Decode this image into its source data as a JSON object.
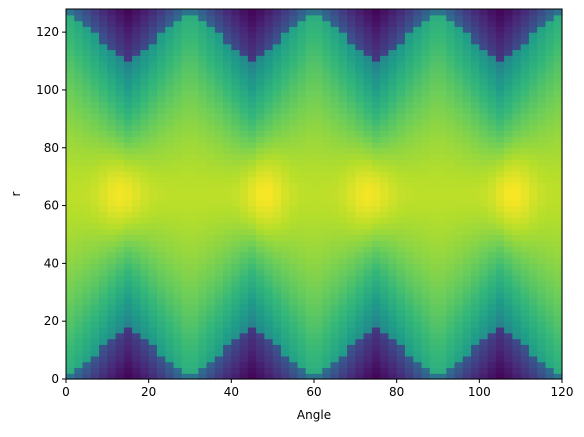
{
  "chart_data": {
    "type": "heatmap",
    "title": "",
    "xlabel": "Angle",
    "ylabel": "r",
    "xlim": [
      0,
      120
    ],
    "ylim": [
      0,
      128
    ],
    "xticks": [
      0,
      20,
      40,
      60,
      80,
      100,
      120
    ],
    "yticks": [
      0,
      20,
      40,
      60,
      80,
      100,
      120
    ],
    "colormap": "viridis",
    "grid": false,
    "colors": {
      "viridis_stops": [
        "#440154",
        "#482878",
        "#3e4989",
        "#31688e",
        "#26828e",
        "#1f9e89",
        "#35b779",
        "#6ece58",
        "#b5de2b",
        "#fde725"
      ]
    },
    "pattern": {
      "description": "Wedge-shaped intensity pattern periodic in angle; r centered at 64 with 4 bright peaks per 120 degrees and diamond cutoffs at 30-degree intervals",
      "period_deg": 30,
      "r_center": 64,
      "half_extent_min": 45,
      "half_extent_max": 64,
      "bright_peaks": [
        {
          "angle": 14,
          "r": 64
        },
        {
          "angle": 47,
          "r": 64
        },
        {
          "angle": 74,
          "r": 64
        },
        {
          "angle": 107,
          "r": 64
        }
      ],
      "ridge_angles": [
        0,
        30,
        60,
        90,
        120
      ]
    }
  }
}
